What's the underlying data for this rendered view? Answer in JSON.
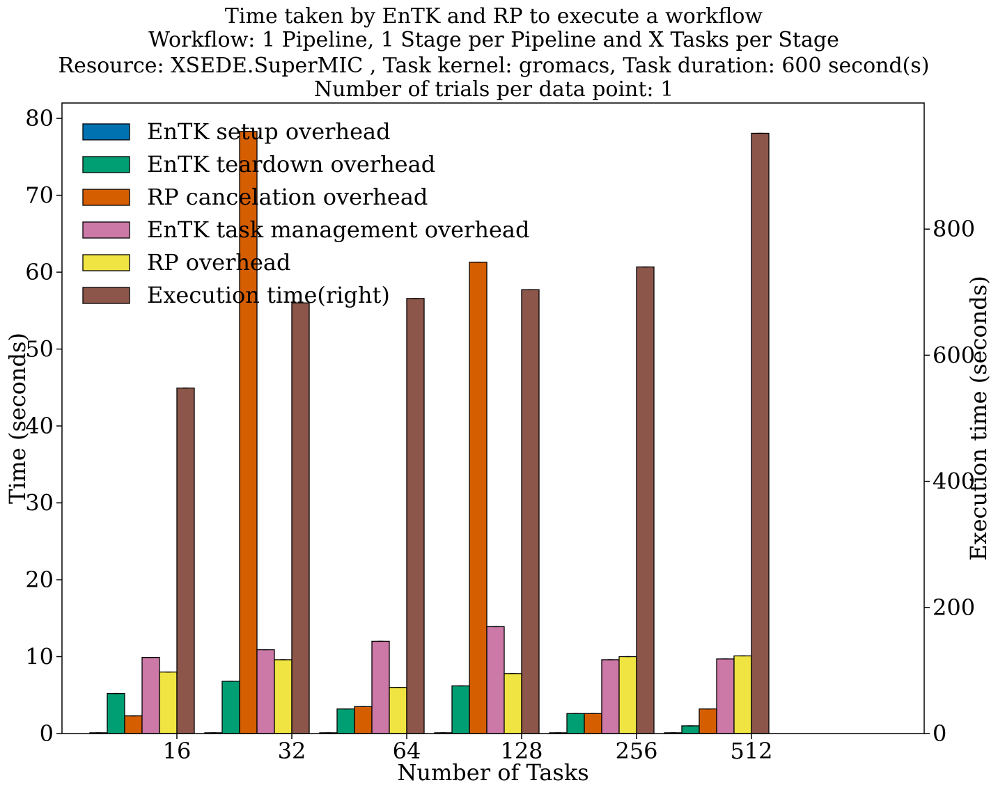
{
  "chart_data": {
    "type": "bar",
    "title": [
      "Time taken by EnTK and RP to execute a workflow",
      "Workflow: 1 Pipeline, 1 Stage per Pipeline and X Tasks per Stage",
      "Resource: XSEDE.SuperMIC , Task kernel: gromacs, Task duration: 600 second(s)",
      "Number of trials per data point: 1"
    ],
    "xlabel": "Number of Tasks",
    "ylabel": "Time (seconds)",
    "y2label": "Execution time (seconds)",
    "categories": [
      "16",
      "32",
      "64",
      "128",
      "256",
      "512"
    ],
    "ylim": [
      0,
      82
    ],
    "y2lim": [
      0,
      1000
    ],
    "yticks": [
      0,
      10,
      20,
      30,
      40,
      50,
      60,
      70,
      80
    ],
    "y2ticks": [
      0,
      200,
      400,
      600,
      800
    ],
    "legend_position": "top-left",
    "series": [
      {
        "name": "EnTK setup overhead",
        "color": "#0072b2",
        "axis": "left",
        "values": [
          0.1,
          0.1,
          0.1,
          0.1,
          0.1,
          0.1
        ]
      },
      {
        "name": "EnTK teardown overhead",
        "color": "#009e73",
        "axis": "left",
        "values": [
          5.2,
          6.8,
          3.2,
          6.2,
          2.6,
          1.0
        ]
      },
      {
        "name": "RP cancelation overhead",
        "color": "#d55e00",
        "axis": "left",
        "values": [
          2.3,
          78.3,
          3.5,
          61.3,
          2.6,
          3.2
        ]
      },
      {
        "name": "EnTK task management overhead",
        "color": "#cc79a7",
        "axis": "left",
        "values": [
          9.9,
          10.9,
          12.0,
          13.9,
          9.6,
          9.7
        ]
      },
      {
        "name": "RP overhead",
        "color": "#f0e442",
        "axis": "left",
        "values": [
          8.0,
          9.6,
          6.0,
          7.8,
          10.0,
          10.1
        ]
      },
      {
        "name": "Execution time(right)",
        "color": "#8c564b",
        "axis": "right",
        "values": [
          548,
          683,
          690,
          704,
          740,
          952
        ]
      }
    ]
  }
}
